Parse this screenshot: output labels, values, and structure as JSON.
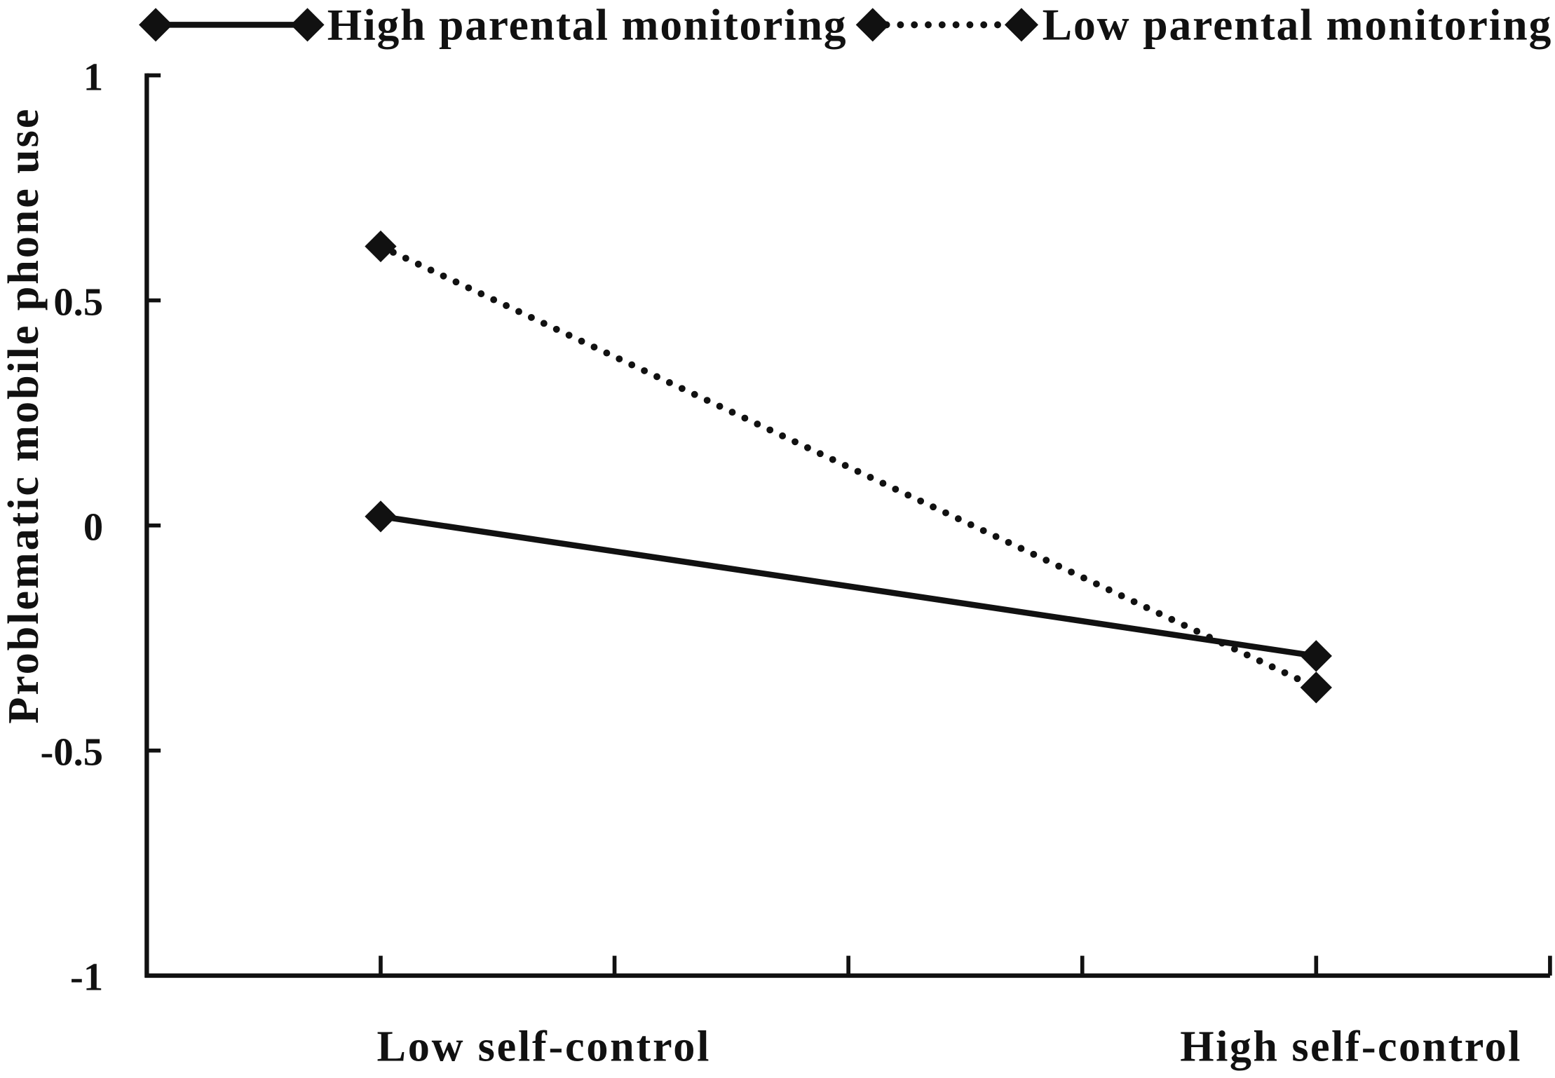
{
  "chart_data": {
    "type": "line",
    "ylabel": "Problematic mobile phone use",
    "categories": [
      "Low self-control",
      "High self-control"
    ],
    "series": [
      {
        "name": "High parental monitoring",
        "values": [
          0.02,
          -0.29
        ]
      },
      {
        "name": "Low parental monitoring",
        "values": [
          0.62,
          -0.36
        ]
      }
    ],
    "ylim": [
      -1,
      1
    ],
    "yticks": [
      1,
      0.5,
      0,
      -0.5,
      -1
    ],
    "ytick_labels": [
      "1",
      "0.5",
      "0",
      "-0.5",
      "-1"
    ],
    "legend_position": "top",
    "grid": false
  },
  "colors": {
    "ink": "#111111",
    "background": "#ffffff"
  }
}
